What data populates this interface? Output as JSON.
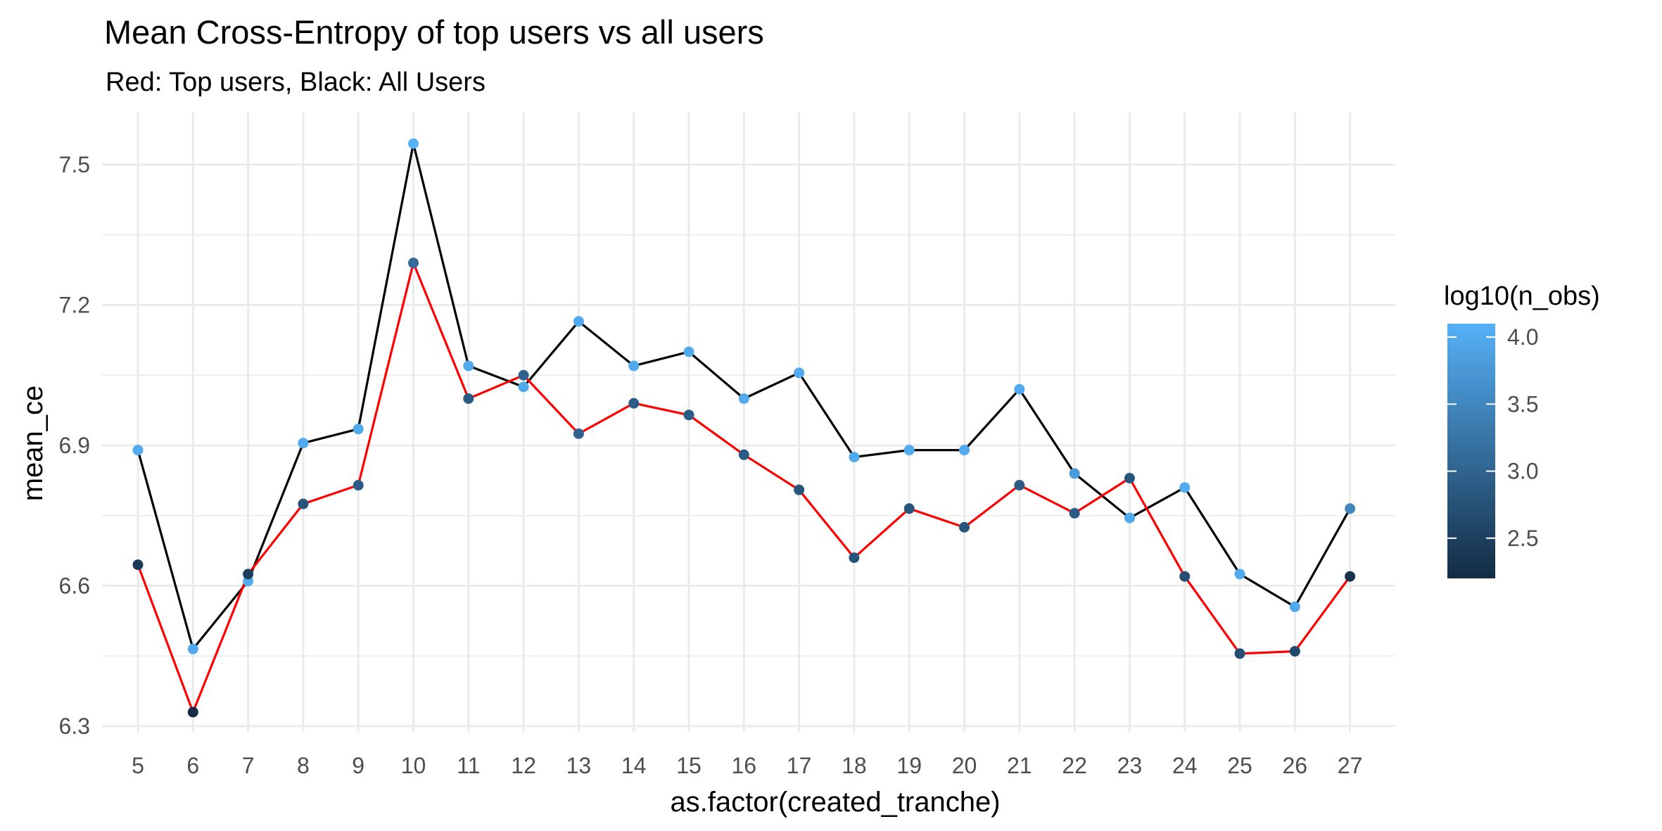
{
  "chart_data": {
    "type": "line",
    "title": "Mean Cross-Entropy of top users vs all users",
    "subtitle": "Red: Top users, Black: All Users",
    "xlabel": "as.factor(created_tranche)",
    "ylabel": "mean_ce",
    "categories": [
      "5",
      "6",
      "7",
      "8",
      "9",
      "10",
      "11",
      "12",
      "13",
      "14",
      "15",
      "16",
      "17",
      "18",
      "19",
      "20",
      "21",
      "22",
      "23",
      "24",
      "25",
      "26",
      "27"
    ],
    "ylim": [
      6.28,
      7.58
    ],
    "yticks": [
      6.3,
      6.6,
      6.9,
      7.2,
      7.5
    ],
    "ytick_labels": [
      "6.3",
      "6.6",
      "6.9",
      "7.2",
      "7.5"
    ],
    "grid": true,
    "series": [
      {
        "line_color": "#000000",
        "values": [
          6.89,
          6.465,
          6.61,
          6.905,
          6.935,
          7.545,
          7.07,
          7.025,
          7.165,
          7.07,
          7.1,
          7.0,
          7.055,
          6.875,
          6.89,
          6.89,
          7.02,
          6.84,
          6.745,
          6.81,
          6.625,
          6.555,
          6.765
        ],
        "log10_n_obs": [
          4.0,
          4.0,
          4.0,
          4.0,
          4.0,
          4.1,
          4.0,
          4.0,
          4.0,
          4.0,
          4.0,
          4.0,
          4.0,
          4.0,
          4.0,
          4.0,
          4.0,
          3.8,
          4.0,
          4.0,
          4.0,
          4.0,
          3.5
        ]
      },
      {
        "line_color": "#ff0000",
        "values": [
          6.645,
          6.33,
          6.625,
          6.775,
          6.815,
          7.29,
          7.0,
          7.05,
          6.925,
          6.99,
          6.965,
          6.88,
          6.805,
          6.66,
          6.765,
          6.725,
          6.815,
          6.755,
          6.83,
          6.62,
          6.455,
          6.46,
          6.62
        ],
        "log10_n_obs": [
          2.4,
          2.2,
          2.5,
          2.8,
          2.9,
          3.1,
          2.9,
          3.0,
          3.0,
          2.9,
          2.9,
          2.9,
          2.8,
          2.8,
          2.8,
          2.8,
          2.9,
          2.9,
          2.8,
          2.7,
          2.7,
          2.6,
          2.3
        ]
      }
    ],
    "legend": {
      "title": "log10(n_obs)",
      "placement": "right",
      "range": [
        2.2,
        4.1
      ],
      "ticks": [
        2.5,
        3.0,
        3.5,
        4.0
      ],
      "tick_labels": [
        "2.5",
        "3.0",
        "3.5",
        "4.0"
      ],
      "color_low": "#132b43",
      "color_high": "#56b1f7"
    }
  }
}
